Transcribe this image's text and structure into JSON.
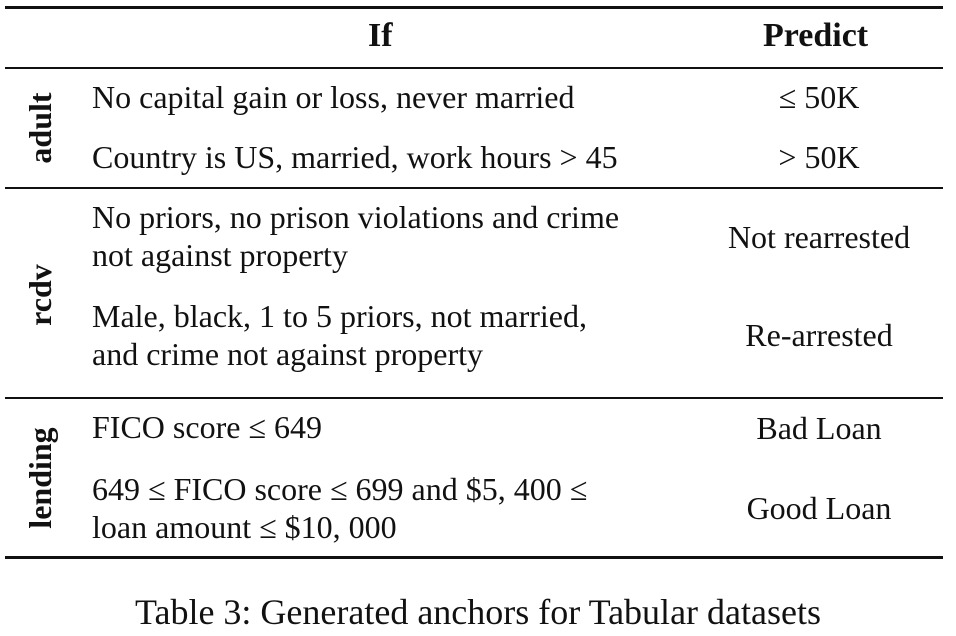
{
  "table": {
    "headers": {
      "if": "If",
      "predict": "Predict"
    },
    "groups": [
      {
        "dataset": "adult",
        "rows": [
          {
            "condition": [
              "No capital gain or loss, never married"
            ],
            "predict": "≤ 50K"
          },
          {
            "condition": [
              "Country is US, married, work hours > 45"
            ],
            "predict": "> 50K"
          }
        ]
      },
      {
        "dataset": "rcdv",
        "rows": [
          {
            "condition": [
              "No priors, no prison violations and crime",
              "not against property"
            ],
            "predict": "Not rearrested"
          },
          {
            "condition": [
              "Male, black, 1 to 5 priors, not married,",
              "and crime not against property"
            ],
            "predict": "Re-arrested"
          }
        ]
      },
      {
        "dataset": "lending",
        "rows": [
          {
            "condition": [
              "FICO score ≤ 649"
            ],
            "predict": "Bad Loan"
          },
          {
            "condition": [
              "649 ≤ FICO score ≤ 699 and $5, 400 ≤",
              "loan amount ≤ $10, 000"
            ],
            "predict": "Good Loan"
          }
        ]
      }
    ]
  },
  "caption": "Table 3: Generated anchors for Tabular datasets"
}
